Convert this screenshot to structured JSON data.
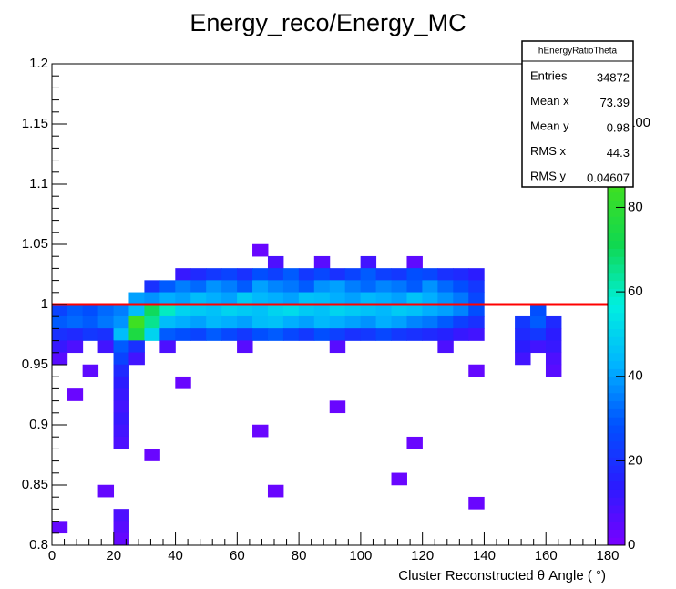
{
  "chart_data": {
    "type": "heatmap",
    "title": "Energy_reco/Energy_MC",
    "x_label": "Cluster Reconstructed    θ Angle ( °)",
    "xlim": [
      0,
      180
    ],
    "xticks": [
      0,
      20,
      40,
      60,
      80,
      100,
      120,
      140,
      160,
      180
    ],
    "ylim": [
      0.8,
      1.2
    ],
    "yticks": [
      0.8,
      0.85,
      0.9,
      0.95,
      1,
      1.05,
      1.1,
      1.15,
      1.2
    ],
    "zlim": [
      0,
      114
    ],
    "zticks": [
      0,
      20,
      40,
      60,
      80,
      100
    ],
    "palette": [
      "#7a00ff",
      "#2a1cff",
      "#0050ff",
      "#00b4ff",
      "#00f0e0",
      "#10d850",
      "#40e020",
      "#b8f000",
      "#f0f000"
    ],
    "reference_line": {
      "y": 1,
      "color": "#ff0000"
    },
    "rows": [
      {
        "y": 1.045,
        "x": [
          67.5
        ],
        "values": [
          3
        ]
      },
      {
        "y": 1.035,
        "x": [
          72.5,
          87.5,
          102.5,
          117.5
        ],
        "values": [
          8,
          6,
          10,
          5
        ]
      },
      {
        "y": 1.025,
        "x": [
          42.5,
          47.5,
          52.5,
          57.5,
          62.5,
          67.5,
          72.5,
          77.5,
          82.5,
          87.5,
          92.5,
          97.5,
          102.5,
          107.5,
          112.5,
          117.5,
          122.5,
          127.5,
          132.5,
          137.5
        ],
        "values": [
          12,
          18,
          22,
          25,
          20,
          28,
          24,
          30,
          22,
          26,
          20,
          25,
          30,
          24,
          22,
          28,
          26,
          20,
          18,
          14
        ]
      },
      {
        "y": 1.015,
        "x": [
          32.5,
          37.5,
          42.5,
          47.5,
          52.5,
          57.5,
          62.5,
          67.5,
          72.5,
          77.5,
          82.5,
          87.5,
          92.5,
          97.5,
          102.5,
          107.5,
          112.5,
          117.5,
          122.5,
          127.5,
          132.5,
          137.5
        ],
        "values": [
          20,
          30,
          35,
          32,
          38,
          35,
          30,
          40,
          36,
          34,
          30,
          38,
          40,
          35,
          32,
          36,
          34,
          30,
          38,
          32,
          28,
          22
        ]
      },
      {
        "y": 1.005,
        "x": [
          27.5,
          32.5,
          37.5,
          42.5,
          47.5,
          52.5,
          57.5,
          62.5,
          67.5,
          72.5,
          77.5,
          82.5,
          87.5,
          92.5,
          97.5,
          102.5,
          107.5,
          112.5,
          117.5,
          122.5,
          127.5,
          132.5,
          137.5
        ],
        "values": [
          40,
          38,
          42,
          40,
          45,
          42,
          40,
          48,
          44,
          42,
          40,
          46,
          45,
          42,
          40,
          44,
          42,
          40,
          46,
          42,
          38,
          34,
          26
        ]
      },
      {
        "y": 0.995,
        "x": [
          2.5,
          7.5,
          12.5,
          17.5,
          22.5,
          27.5,
          32.5,
          37.5,
          42.5,
          47.5,
          52.5,
          57.5,
          62.5,
          67.5,
          72.5,
          77.5,
          82.5,
          87.5,
          92.5,
          97.5,
          102.5,
          107.5,
          112.5,
          117.5,
          122.5,
          127.5,
          132.5,
          137.5,
          157.5
        ],
        "values": [
          25,
          30,
          28,
          32,
          35,
          45,
          70,
          60,
          50,
          48,
          46,
          50,
          48,
          46,
          50,
          52,
          48,
          46,
          50,
          48,
          46,
          44,
          48,
          46,
          42,
          40,
          36,
          28,
          28
        ]
      },
      {
        "y": 0.985,
        "x": [
          2.5,
          7.5,
          12.5,
          17.5,
          22.5,
          27.5,
          32.5,
          37.5,
          42.5,
          47.5,
          52.5,
          57.5,
          62.5,
          67.5,
          72.5,
          77.5,
          82.5,
          87.5,
          92.5,
          97.5,
          102.5,
          107.5,
          112.5,
          117.5,
          122.5,
          127.5,
          132.5,
          137.5,
          152.5,
          157.5,
          162.5
        ],
        "values": [
          30,
          32,
          30,
          34,
          38,
          85,
          65,
          45,
          42,
          40,
          44,
          42,
          40,
          45,
          46,
          42,
          40,
          44,
          42,
          40,
          38,
          42,
          40,
          36,
          34,
          30,
          24,
          20,
          22,
          30,
          18
        ]
      },
      {
        "y": 0.975,
        "x": [
          2.5,
          7.5,
          12.5,
          17.5,
          22.5,
          27.5,
          32.5,
          37.5,
          42.5,
          47.5,
          52.5,
          57.5,
          62.5,
          67.5,
          72.5,
          77.5,
          82.5,
          87.5,
          92.5,
          97.5,
          102.5,
          107.5,
          112.5,
          117.5,
          122.5,
          127.5,
          132.5,
          137.5,
          152.5,
          157.5,
          162.5
        ],
        "values": [
          20,
          18,
          22,
          20,
          45,
          75,
          50,
          30,
          28,
          25,
          30,
          26,
          22,
          28,
          30,
          26,
          22,
          28,
          24,
          20,
          22,
          26,
          22,
          20,
          18,
          16,
          12,
          10,
          18,
          22,
          14
        ]
      },
      {
        "y": 0.965,
        "x": [
          2.5,
          7.5,
          17.5,
          22.5,
          27.5,
          37.5,
          62.5,
          92.5,
          127.5,
          152.5,
          157.5,
          162.5
        ],
        "values": [
          12,
          8,
          10,
          30,
          20,
          8,
          6,
          6,
          8,
          14,
          10,
          12
        ]
      },
      {
        "y": 0.955,
        "x": [
          2.5,
          22.5,
          27.5,
          152.5,
          162.5
        ],
        "values": [
          6,
          25,
          10,
          10,
          8
        ]
      },
      {
        "y": 0.945,
        "x": [
          12.5,
          22.5,
          137.5,
          162.5
        ],
        "values": [
          5,
          18,
          4,
          6
        ]
      },
      {
        "y": 0.935,
        "x": [
          22.5,
          42.5
        ],
        "values": [
          14,
          3
        ]
      },
      {
        "y": 0.925,
        "x": [
          7.5,
          22.5
        ],
        "values": [
          3,
          12
        ]
      },
      {
        "y": 0.915,
        "x": [
          22.5,
          92.5
        ],
        "values": [
          10,
          3
        ]
      },
      {
        "y": 0.905,
        "x": [
          22.5
        ],
        "values": [
          12
        ]
      },
      {
        "y": 0.895,
        "x": [
          22.5,
          67.5
        ],
        "values": [
          10,
          3
        ]
      },
      {
        "y": 0.885,
        "x": [
          22.5,
          117.5
        ],
        "values": [
          8,
          3
        ]
      },
      {
        "y": 0.875,
        "x": [
          32.5
        ],
        "values": [
          3
        ]
      },
      {
        "y": 0.855,
        "x": [
          112.5
        ],
        "values": [
          3
        ]
      },
      {
        "y": 0.845,
        "x": [
          17.5,
          72.5
        ],
        "values": [
          4,
          3
        ]
      },
      {
        "y": 0.835,
        "x": [
          137.5
        ],
        "values": [
          3
        ]
      },
      {
        "y": 0.825,
        "x": [
          22.5
        ],
        "values": [
          8
        ]
      },
      {
        "y": 0.815,
        "x": [
          2.5,
          22.5
        ],
        "values": [
          4,
          6
        ]
      },
      {
        "y": 0.805,
        "x": [
          22.5
        ],
        "values": [
          4
        ]
      }
    ],
    "stats": {
      "title": "hEnergyRatioTheta",
      "labels": [
        "Entries",
        "Mean x",
        "Mean y",
        "RMS x",
        "RMS y"
      ],
      "values": [
        34872,
        73.39,
        0.98,
        44.3,
        0.04607
      ]
    }
  }
}
